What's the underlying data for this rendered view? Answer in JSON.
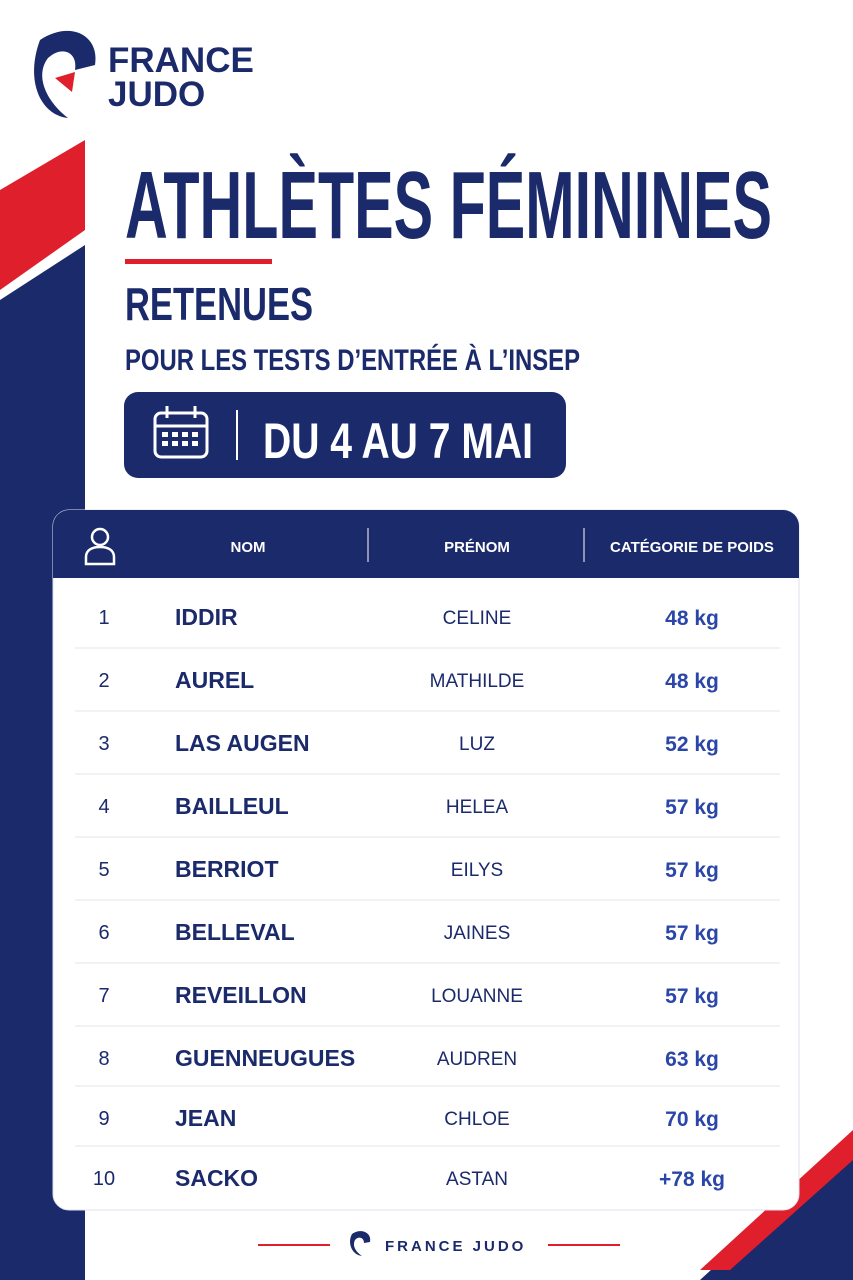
{
  "logo": {
    "line1": "FRANCE",
    "line2": "JUDO"
  },
  "title": "ATHLÈTES FÉMININES",
  "subtitle": "RETENUES",
  "description": "POUR LES TESTS D’ENTRÉE À L’INSEP",
  "dates": "DU 4 AU 7 MAI",
  "table": {
    "headers": [
      "NOM",
      "PRÉNOM",
      "CATÉGORIE DE POIDS"
    ],
    "rows": [
      [
        "1",
        "IDDIR",
        "CELINE",
        "48 kg"
      ],
      [
        "2",
        "AUREL",
        "MATHILDE",
        "48 kg"
      ],
      [
        "3",
        "LAS AUGEN",
        "LUZ",
        "52 kg"
      ],
      [
        "4",
        "BAILLEUL",
        "HELEA",
        "57 kg"
      ],
      [
        "5",
        "BERRIOT",
        "EILYS",
        "57 kg"
      ],
      [
        "6",
        "BELLEVAL",
        "JAINES",
        "57 kg"
      ],
      [
        "7",
        "REVEILLON",
        "LOUANNE",
        "57 kg"
      ],
      [
        "8",
        "GUENNEUGUES",
        "AUDREN",
        "63 kg"
      ],
      [
        "9",
        "JEAN",
        "CHLOE",
        "70 kg"
      ],
      [
        "10",
        "SACKO",
        "ASTAN",
        "+78 kg"
      ]
    ]
  },
  "footer": "FRANCE JUDO"
}
